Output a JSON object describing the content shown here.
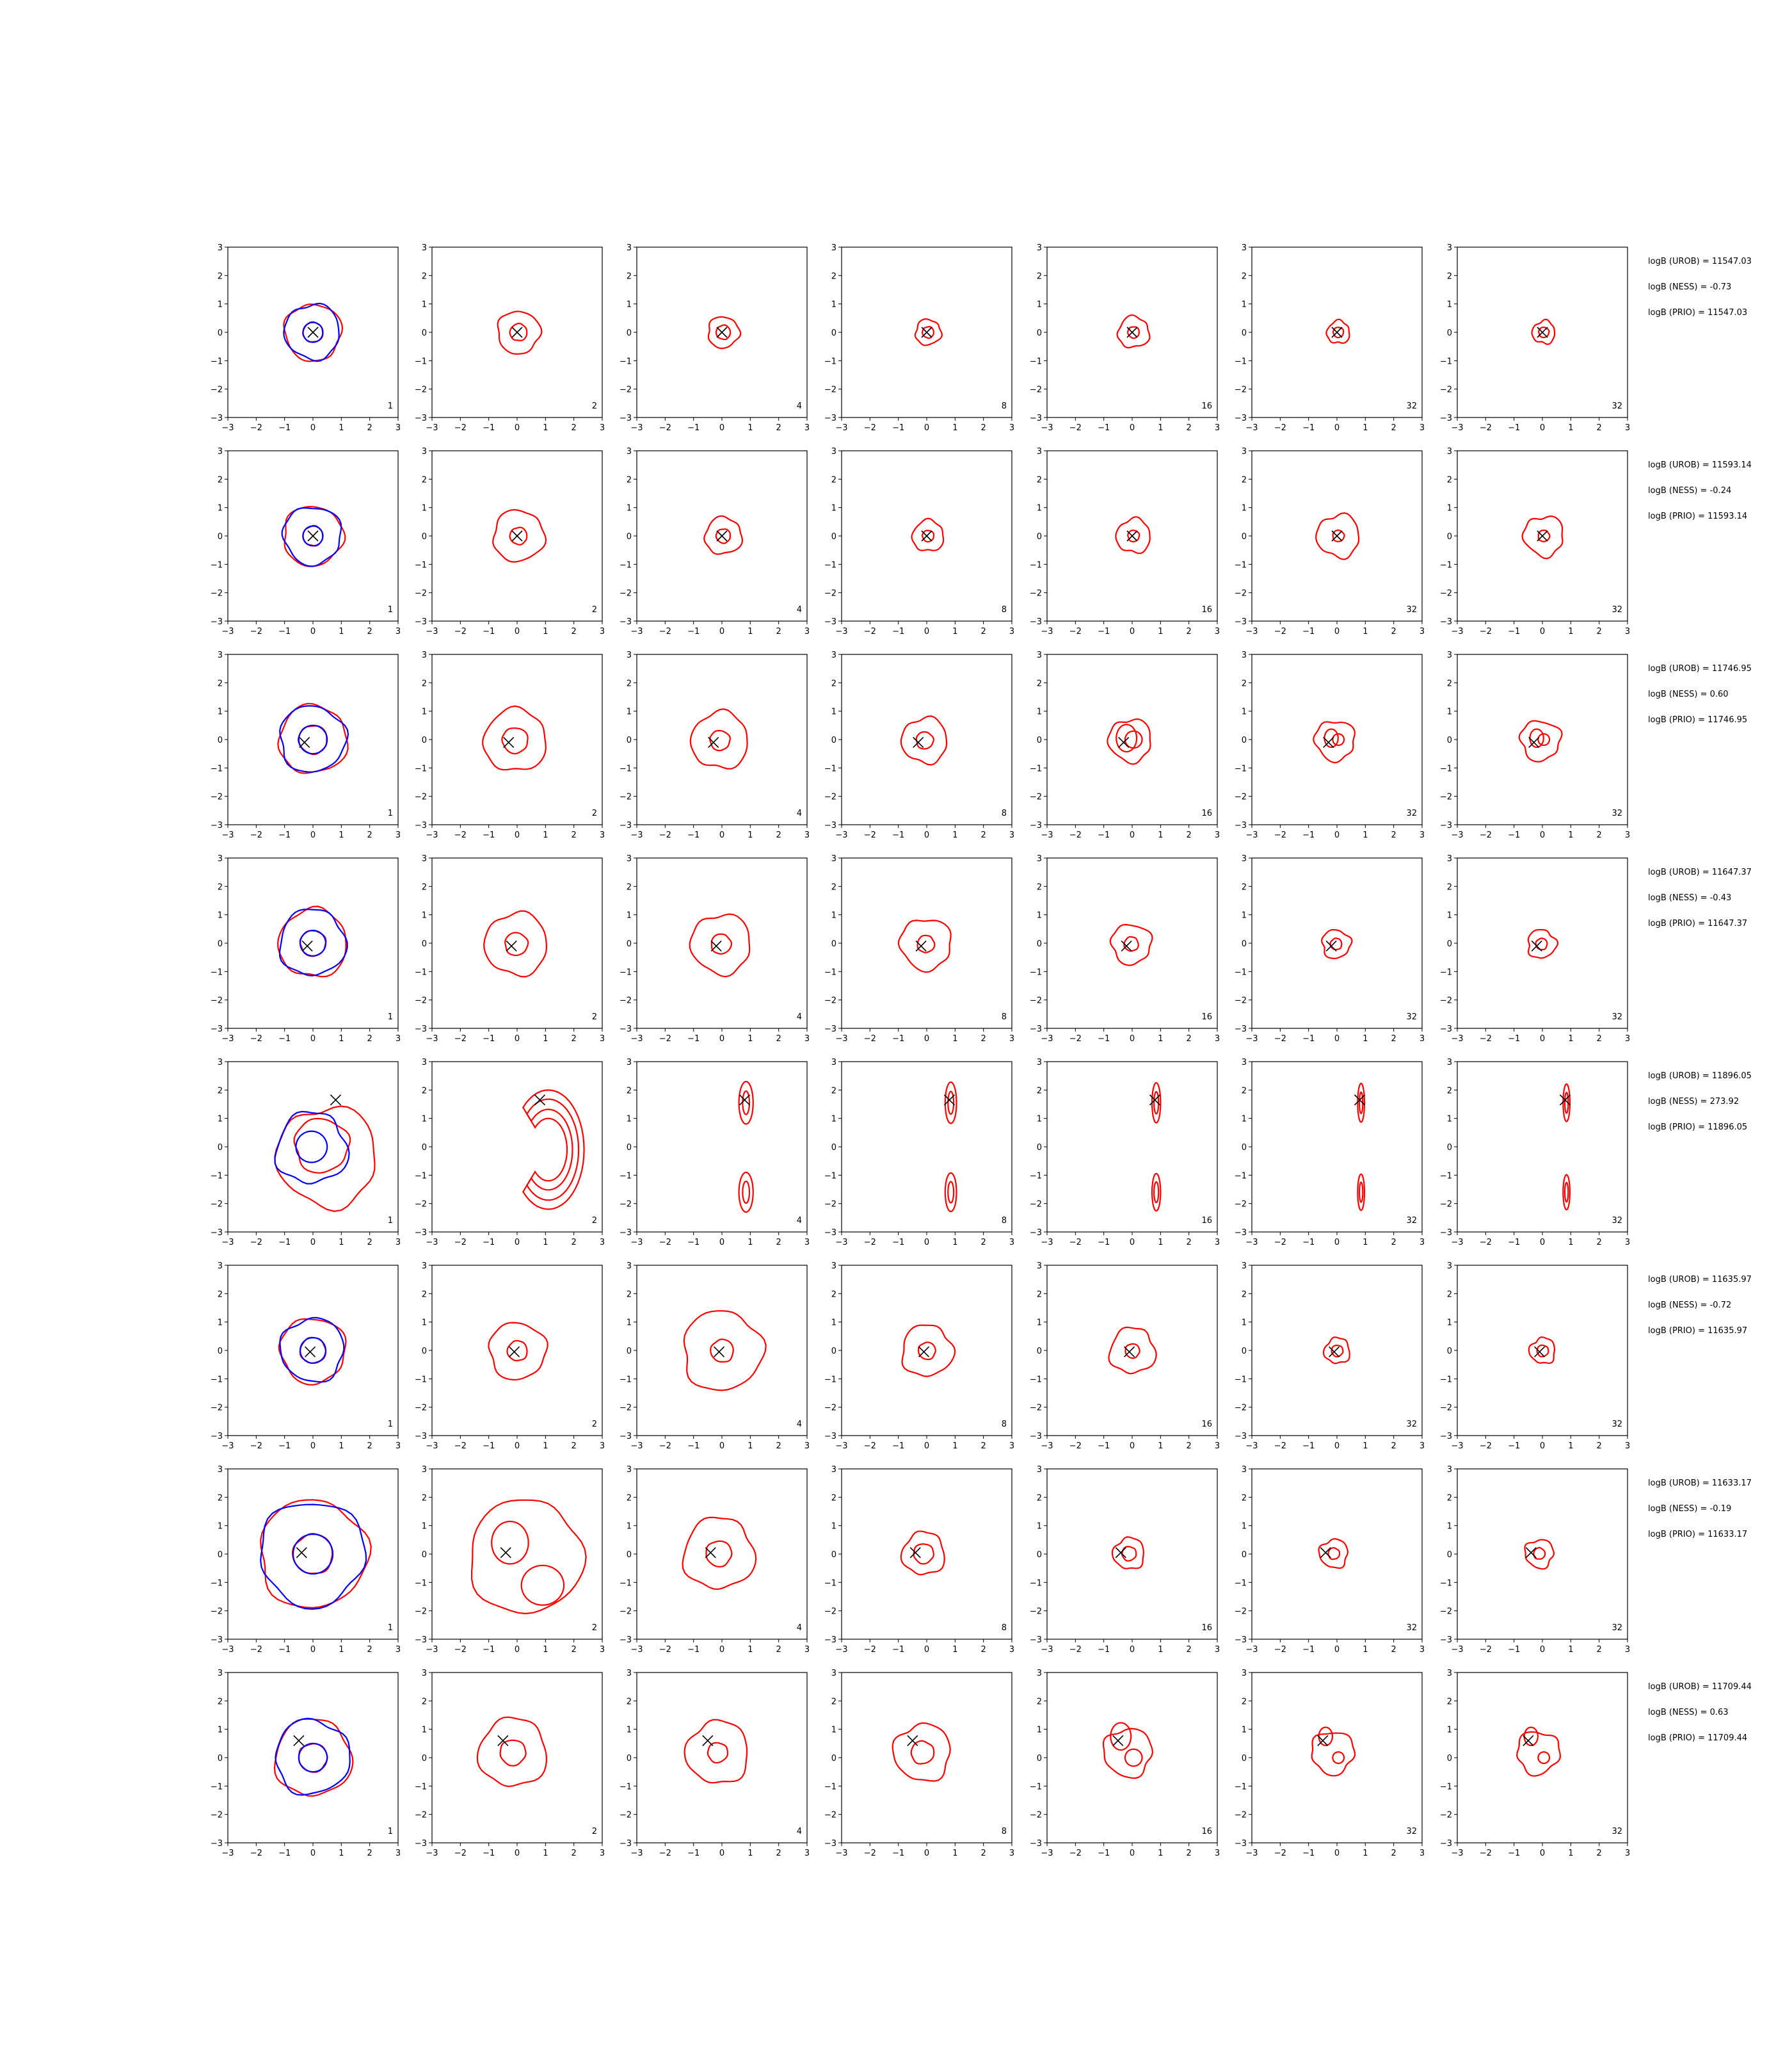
{
  "chart_data": {
    "type": "contour",
    "layout": {
      "rows": 8,
      "cols": 7
    },
    "axes": {
      "xlim": [
        -3,
        3
      ],
      "ylim": [
        -3,
        3
      ],
      "ticks": [
        -3,
        -2,
        -1,
        0,
        1,
        2,
        3
      ]
    },
    "tick_labels": [
      "−3",
      "−2",
      "−1",
      "0",
      "1",
      "2",
      "3"
    ],
    "series_colors": {
      "reference": "#0000ff",
      "estimate": "#ff0000",
      "marker": "#000000"
    },
    "panel_labels": [
      "1",
      "2",
      "4",
      "8",
      "16",
      "32",
      "32"
    ],
    "rows": [
      {
        "marker": [
          0.0,
          0.0
        ],
        "shape": "round",
        "outer_r": [
          1.0,
          0.75,
          0.55,
          0.45,
          0.55,
          0.4,
          0.4
        ],
        "inner_r": [
          0.35,
          0.3,
          0.25,
          0.2,
          0.2,
          0.18,
          0.18
        ],
        "stats": [
          "logB (UROB) = 11547.03",
          "logB (NESS) = -0.73",
          "logB (PRIO) = 11547.03"
        ]
      },
      {
        "marker": [
          0.0,
          0.0
        ],
        "shape": "round",
        "outer_r": [
          1.05,
          0.9,
          0.65,
          0.55,
          0.6,
          0.75,
          0.7
        ],
        "inner_r": [
          0.35,
          0.3,
          0.25,
          0.2,
          0.2,
          0.2,
          0.2
        ],
        "stats": [
          "logB (UROB) = 11593.14",
          "logB (NESS) = -0.24",
          "logB (PRIO) = 11593.14"
        ]
      },
      {
        "marker": [
          -0.3,
          -0.1
        ],
        "shape": "lobed",
        "outer_r": [
          1.2,
          1.1,
          1.0,
          0.8,
          0.75,
          0.7,
          0.7
        ],
        "inner_r": [
          0.5,
          0.45,
          0.35,
          0.3,
          0.3,
          0.2,
          0.2
        ],
        "stats": [
          "logB (UROB) = 11746.95",
          "logB (NESS) = 0.60",
          "logB (PRIO) = 11746.95"
        ]
      },
      {
        "marker": [
          -0.2,
          -0.1
        ],
        "shape": "round",
        "outer_r": [
          1.2,
          1.1,
          1.05,
          0.9,
          0.7,
          0.5,
          0.5
        ],
        "inner_r": [
          0.45,
          0.4,
          0.35,
          0.3,
          0.25,
          0.2,
          0.2
        ],
        "stats": [
          "logB (UROB) = 11647.37",
          "logB (NESS) = -0.43",
          "logB (PRIO) = 11647.37"
        ]
      },
      {
        "marker": [
          0.8,
          1.65
        ],
        "shape": "bimodal",
        "outer_r": [
          2.2,
          1.6,
          0.25,
          0.2,
          0.15,
          0.12,
          0.12
        ],
        "inner_r": [
          0.8,
          0.6,
          0.12,
          0.1,
          0.08,
          0.06,
          0.06
        ],
        "stats": [
          "logB (UROB) = 11896.05",
          "logB (NESS) = 273.92",
          "logB (PRIO) = 11896.05"
        ]
      },
      {
        "marker": [
          -0.1,
          -0.05
        ],
        "shape": "round",
        "outer_r": [
          1.15,
          1.0,
          1.4,
          0.9,
          0.8,
          0.45,
          0.45
        ],
        "inner_r": [
          0.45,
          0.35,
          0.4,
          0.3,
          0.25,
          0.2,
          0.2
        ],
        "stats": [
          "logB (UROB) = 11635.97",
          "logB (NESS) = -0.72",
          "logB (PRIO) = 11635.97"
        ]
      },
      {
        "marker": [
          -0.4,
          0.05
        ],
        "shape": "wide",
        "outer_r": [
          1.9,
          2.0,
          1.25,
          0.75,
          0.55,
          0.5,
          0.5
        ],
        "inner_r": [
          0.7,
          0.55,
          0.45,
          0.35,
          0.25,
          0.2,
          0.2
        ],
        "stats": [
          "logB (UROB) = 11633.17",
          "logB (NESS) = -0.19",
          "logB (PRIO) = 11633.17"
        ]
      },
      {
        "marker": [
          -0.5,
          0.6
        ],
        "shape": "lobed",
        "outer_r": [
          1.35,
          1.2,
          1.1,
          1.0,
          0.85,
          0.75,
          0.75
        ],
        "inner_r": [
          0.5,
          0.45,
          0.35,
          0.4,
          0.3,
          0.2,
          0.2
        ],
        "stats": [
          "logB (UROB) = 11709.44",
          "logB (NESS) = 0.63",
          "logB (PRIO) = 11709.44"
        ]
      }
    ]
  }
}
